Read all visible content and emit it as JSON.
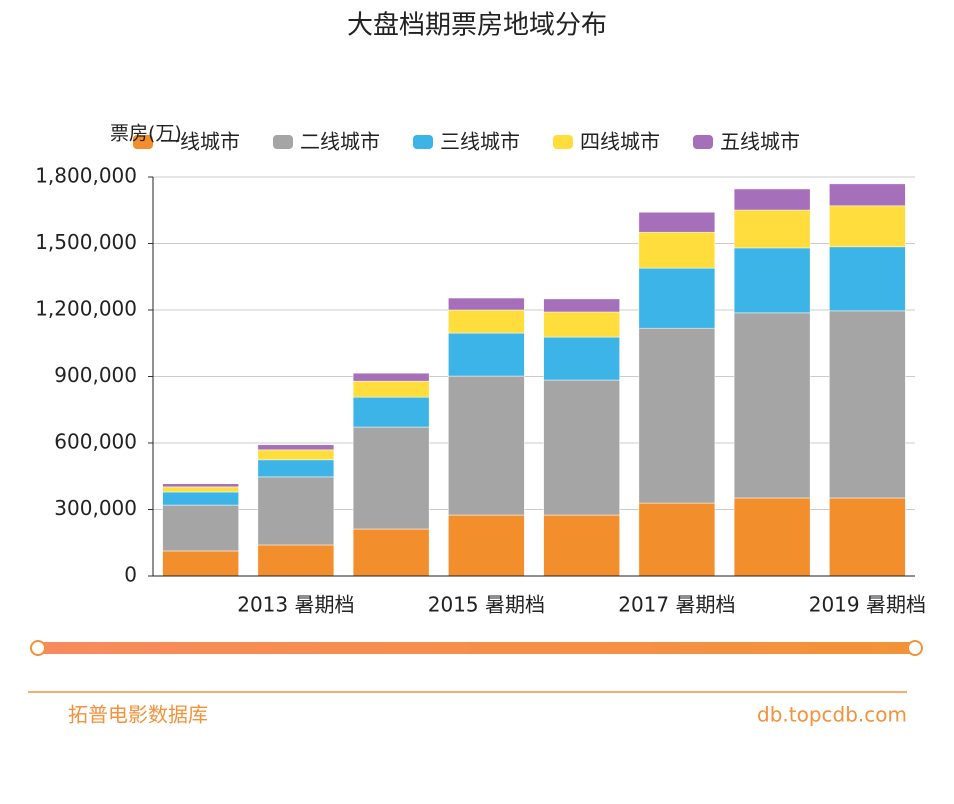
{
  "chart_data": {
    "type": "bar",
    "stacked": true,
    "title": "大盘档期票房地域分布",
    "y_label": "票房(万)",
    "categories": [
      null,
      "2013 暑期档",
      null,
      "2015 暑期档",
      null,
      "2017 暑期档",
      null,
      "2019 暑期档"
    ],
    "series": [
      {
        "name": "一线城市",
        "color": "#f28e2c",
        "values": [
          113000,
          140000,
          212000,
          275000,
          275000,
          329000,
          352000,
          352000
        ]
      },
      {
        "name": "二线城市",
        "color": "#a5a5a5",
        "values": [
          207000,
          307000,
          460000,
          627000,
          609000,
          789000,
          835000,
          844000
        ]
      },
      {
        "name": "三线城市",
        "color": "#3cb4e7",
        "values": [
          59000,
          77000,
          135000,
          194000,
          194000,
          271000,
          293000,
          289000
        ]
      },
      {
        "name": "四线城市",
        "color": "#fedd3c",
        "values": [
          23000,
          45000,
          72000,
          104000,
          113000,
          162000,
          171000,
          185000
        ]
      },
      {
        "name": "五线城市",
        "color": "#a66fba",
        "values": [
          14000,
          23000,
          36000,
          54000,
          59000,
          90000,
          95000,
          99000
        ]
      }
    ],
    "ylim": [
      0,
      1800000
    ],
    "yticks": [
      0,
      {
        "value": 300000,
        "label": "300,000"
      },
      {
        "value": 600000,
        "label": "600,000"
      },
      {
        "value": 900000,
        "label": "900,000"
      },
      {
        "value": 1200000,
        "label": "1,200,000"
      },
      {
        "value": 1500000,
        "label": "1,500,000"
      },
      {
        "value": 1800000,
        "label": "1,800,000"
      }
    ],
    "grid": true,
    "legend": "top"
  },
  "footer": {
    "left": "拓普电影数据库",
    "right": "db.topcdb.com"
  }
}
